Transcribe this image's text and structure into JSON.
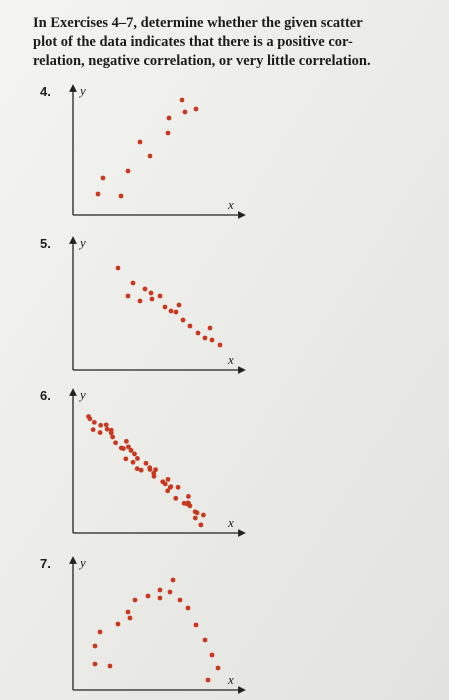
{
  "intro": {
    "lines": [
      "In Exercises 4–7, determine whether the given scatter",
      "plot of the data indicates that there is a positive cor-",
      "relation, negative correlation, or very little correlation."
    ]
  },
  "exercises": [
    {
      "number": "4.",
      "y_label": "y",
      "x_label": "x"
    },
    {
      "number": "5.",
      "y_label": "y",
      "x_label": "x"
    },
    {
      "number": "6.",
      "y_label": "y",
      "x_label": "x"
    },
    {
      "number": "7.",
      "y_label": "y",
      "x_label": "x"
    }
  ]
}
